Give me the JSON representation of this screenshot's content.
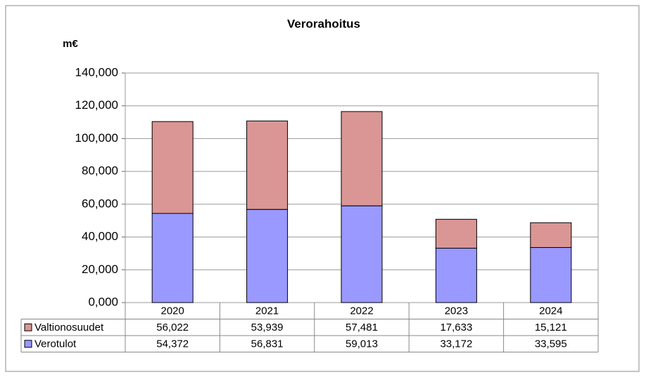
{
  "chart_data": {
    "type": "stacked_bar",
    "title": "Verorahoitus",
    "y_label": "m€",
    "categories": [
      "2020",
      "2021",
      "2022",
      "2023",
      "2024"
    ],
    "series": [
      {
        "name": "Valtionosuudet",
        "color": "#d99694",
        "values": [
          56.022,
          53.939,
          57.481,
          17.633,
          15.121
        ],
        "value_labels": [
          "56,022",
          "53,939",
          "57,481",
          "17,633",
          "15,121"
        ]
      },
      {
        "name": "Verotulot",
        "color": "#9999ff",
        "values": [
          54.372,
          56.831,
          59.013,
          33.172,
          33.595
        ],
        "value_labels": [
          "54,372",
          "56,831",
          "59,013",
          "33,172",
          "33,595"
        ]
      }
    ],
    "ylim": [
      0,
      140
    ],
    "yticks": [
      {
        "value": 0,
        "label": "0,000"
      },
      {
        "value": 20,
        "label": "20,000"
      },
      {
        "value": 40,
        "label": "40,000"
      },
      {
        "value": 60,
        "label": "60,000"
      },
      {
        "value": 80,
        "label": "80,000"
      },
      {
        "value": 100,
        "label": "100,000"
      },
      {
        "value": 120,
        "label": "120,000"
      },
      {
        "value": 140,
        "label": "140,000"
      }
    ],
    "grid": true
  }
}
